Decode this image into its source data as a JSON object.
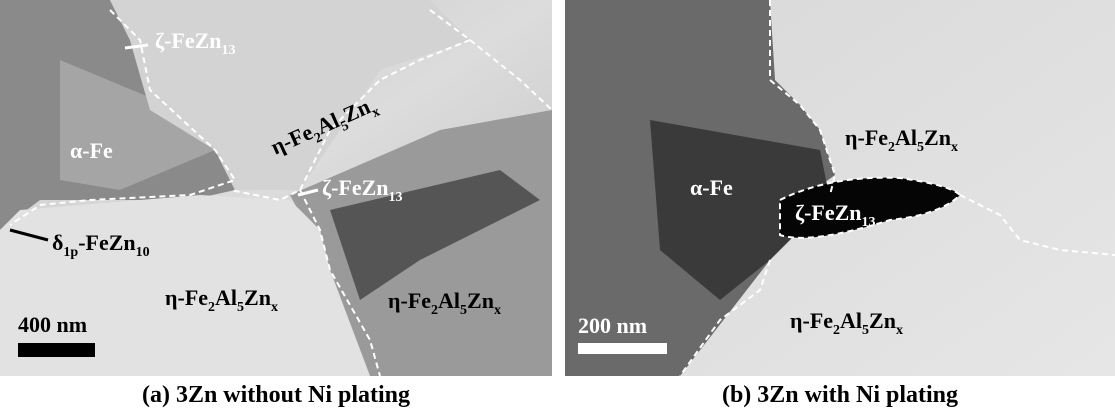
{
  "panels": [
    {
      "labels": [
        {
          "parts": [
            {
              "text": "ζ-FeZn"
            },
            {
              "sub": "13"
            }
          ]
        },
        {
          "parts": [
            {
              "text": "η-Fe"
            },
            {
              "sub": "2"
            },
            {
              "text": "Al"
            },
            {
              "sub": "5"
            },
            {
              "text": "Zn"
            },
            {
              "sub": "x"
            }
          ]
        },
        {
          "parts": [
            {
              "text": "α-Fe"
            }
          ]
        },
        {
          "parts": [
            {
              "text": "ζ-FeZn"
            },
            {
              "sub": "13"
            }
          ]
        },
        {
          "parts": [
            {
              "text": "δ"
            },
            {
              "sub": "1p"
            },
            {
              "text": "-FeZn"
            },
            {
              "sub": "10"
            }
          ]
        },
        {
          "parts": [
            {
              "text": "η-Fe"
            },
            {
              "sub": "2"
            },
            {
              "text": "Al"
            },
            {
              "sub": "5"
            },
            {
              "text": "Zn"
            },
            {
              "sub": "x"
            }
          ]
        },
        {
          "parts": [
            {
              "text": "η-Fe"
            },
            {
              "sub": "2"
            },
            {
              "text": "Al"
            },
            {
              "sub": "5"
            },
            {
              "text": "Zn"
            },
            {
              "sub": "x"
            }
          ]
        }
      ],
      "scale_bar": "400 nm",
      "caption": "(a) 3Zn without Ni plating"
    },
    {
      "labels": [
        {
          "parts": [
            {
              "text": "α-Fe"
            }
          ]
        },
        {
          "parts": [
            {
              "text": "ζ-FeZn"
            },
            {
              "sub": "13"
            }
          ]
        },
        {
          "parts": [
            {
              "text": "η-Fe"
            },
            {
              "sub": "2"
            },
            {
              "text": "Al"
            },
            {
              "sub": "5"
            },
            {
              "text": "Zn"
            },
            {
              "sub": "x"
            }
          ]
        },
        {
          "parts": [
            {
              "text": "η-Fe"
            },
            {
              "sub": "2"
            },
            {
              "text": "Al"
            },
            {
              "sub": "5"
            },
            {
              "text": "Zn"
            },
            {
              "sub": "x"
            }
          ]
        }
      ],
      "scale_bar": "200 nm",
      "caption": "(b) 3Zn with Ni plating"
    }
  ]
}
